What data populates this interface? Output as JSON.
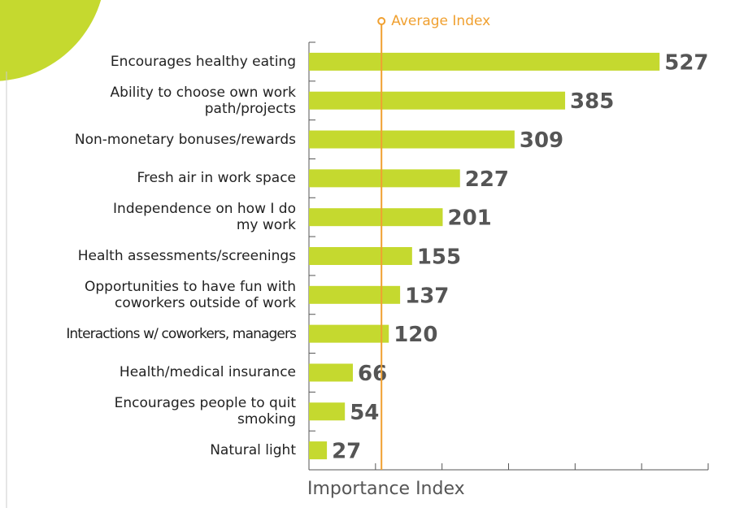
{
  "chart_data": {
    "type": "bar",
    "orientation": "horizontal",
    "categories": [
      "Encourages healthy eating",
      "Ability to choose own work\npath/projects",
      "Non-monetary bonuses/rewards",
      "Fresh air in work space",
      "Independence on how I do\nmy work",
      "Health assessments/screenings",
      "Opportunities to have fun with\ncoworkers outside of work",
      "Interactions w/ coworkers, managers",
      "Health/medical insurance",
      "Encourages people to quit\nsmoking",
      "Natural light"
    ],
    "values": [
      527,
      385,
      309,
      227,
      201,
      155,
      137,
      120,
      66,
      54,
      27
    ],
    "color": "#c5d92f",
    "xlabel": "Importance Index",
    "xlim": [
      0,
      600
    ],
    "xticks": [
      0,
      100,
      200,
      300,
      400,
      500,
      600
    ],
    "reference_line": {
      "label": "Average Index",
      "value": 109,
      "color": "#f0a030"
    }
  }
}
